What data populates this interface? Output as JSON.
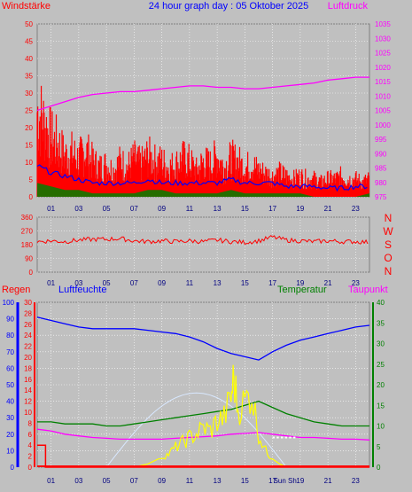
{
  "title": "24 hour graph day : 05 Oktober 2025",
  "hour_ticks": [
    "01",
    "03",
    "05",
    "07",
    "09",
    "11",
    "13",
    "15",
    "17",
    "19",
    "21",
    "23"
  ],
  "colors": {
    "background": "#c0c0c0",
    "plot_bg": "#c0c0c0",
    "grid": "#ffffff",
    "wind": "#ff0000",
    "wind_avg": "#0000ff",
    "wind_min": "#008000",
    "pressure": "#ff00ff",
    "direction": "#ff0000",
    "humidity": "#0000ff",
    "temperature": "#008000",
    "dewpoint": "#ff00ff",
    "rain": "#ff0000",
    "solar": "#ffff00",
    "sun": "#ffffff"
  },
  "chart_data": [
    {
      "type": "line",
      "name": "wind-pressure",
      "labels": {
        "left": "Windstärke",
        "right": "Luftdruck"
      },
      "y_left_ticks": [
        "50",
        "45",
        "40",
        "35",
        "30",
        "25",
        "20",
        "15",
        "10",
        "5",
        "0"
      ],
      "y_right_ticks": [
        "1035",
        "1030",
        "1025",
        "1020",
        "1015",
        "1010",
        "1005",
        "1000",
        "995",
        "990",
        "985",
        "980",
        "975"
      ],
      "ylim_left": [
        0,
        50
      ],
      "ylim_right": [
        975,
        1035
      ],
      "x_hours": [
        0,
        24
      ],
      "grid": true,
      "series": [
        {
          "key": "gust",
          "x": [
            0,
            0.5,
            1,
            1.5,
            2,
            2.5,
            3,
            3.5,
            4,
            4.5,
            5,
            5.5,
            6,
            6.5,
            7,
            7.5,
            8,
            8.5,
            9,
            9.5,
            10,
            10.5,
            11,
            11.5,
            12,
            12.5,
            13,
            13.5,
            14,
            14.5,
            15,
            15.5,
            16,
            16.5,
            17,
            17.5,
            18,
            18.5,
            19,
            19.5,
            20,
            20.5,
            21,
            21.5,
            22,
            22.5,
            23,
            23.5,
            24
          ],
          "y": [
            30,
            25,
            20,
            18,
            14,
            15,
            13,
            16,
            12,
            10,
            11,
            9,
            12,
            10,
            13,
            11,
            14,
            12,
            12,
            10,
            11,
            13,
            12,
            9,
            12,
            11,
            14,
            10,
            13,
            12,
            10,
            11,
            9,
            8,
            7,
            8,
            7,
            6,
            7,
            6,
            6,
            5,
            6,
            6,
            7,
            6,
            6,
            5,
            6
          ]
        },
        {
          "key": "avg",
          "x": [
            0,
            1,
            2,
            3,
            4,
            5,
            6,
            7,
            8,
            9,
            10,
            11,
            12,
            13,
            14,
            15,
            16,
            17,
            18,
            19,
            20,
            21,
            22,
            23,
            24
          ],
          "y": [
            9,
            7,
            6,
            5,
            4,
            4,
            4,
            4,
            5,
            4,
            4,
            4,
            4,
            4,
            5,
            4,
            4,
            4,
            3,
            3,
            3,
            2.5,
            2.5,
            3,
            3
          ]
        },
        {
          "key": "min",
          "x": [
            0,
            1,
            2,
            3,
            4,
            5,
            6,
            7,
            8,
            9,
            10,
            11,
            12,
            13,
            14,
            15,
            16,
            17,
            18,
            19,
            20,
            21,
            22,
            23,
            24
          ],
          "y": [
            4,
            3,
            2,
            2,
            1,
            1,
            1,
            1,
            2,
            2,
            1,
            1,
            1,
            1,
            2,
            1,
            1,
            1,
            1,
            1,
            0,
            0,
            0,
            0,
            1
          ]
        },
        {
          "key": "pressure",
          "axis": "right",
          "x": [
            0,
            1,
            2,
            3,
            4,
            5,
            6,
            7,
            8,
            9,
            10,
            11,
            12,
            13,
            14,
            15,
            16,
            17,
            18,
            19,
            20,
            21,
            22,
            23,
            24
          ],
          "y": [
            1005,
            1006.5,
            1008,
            1009.5,
            1010.5,
            1011,
            1011.5,
            1011.5,
            1012,
            1012.5,
            1013,
            1013.5,
            1013.5,
            1013,
            1013,
            1012.5,
            1012.5,
            1013,
            1013.5,
            1014,
            1014.5,
            1015.5,
            1016,
            1016.5,
            1016.5
          ]
        }
      ]
    },
    {
      "type": "line",
      "name": "wind-direction",
      "y_ticks": [
        "360",
        "270",
        "180",
        "90",
        "0"
      ],
      "ylim": [
        0,
        360
      ],
      "compass": [
        "N",
        "W",
        "S",
        "O",
        "N"
      ],
      "series": [
        {
          "key": "direction",
          "x": [
            0,
            1,
            2,
            3,
            4,
            5,
            6,
            7,
            8,
            9,
            10,
            11,
            12,
            13,
            14,
            15,
            16,
            17,
            18,
            19,
            20,
            21,
            22,
            23,
            24
          ],
          "y": [
            200,
            205,
            200,
            210,
            215,
            215,
            220,
            205,
            200,
            205,
            200,
            205,
            200,
            210,
            200,
            195,
            205,
            230,
            210,
            205,
            200,
            205,
            200,
            200,
            195
          ]
        }
      ]
    },
    {
      "type": "line",
      "name": "climate",
      "labels": {
        "rain": "Regen",
        "humidity": "Luftfeuchte",
        "temperature": "Temperatur",
        "dewpoint": "Taupunkt",
        "sun": "Sun Sh"
      },
      "humidity_ticks": [
        "100",
        "90",
        "80",
        "70",
        "60",
        "50",
        "40",
        "30",
        "20",
        "10",
        "0"
      ],
      "rain_ticks": [
        "30",
        "28",
        "26",
        "24",
        "22",
        "20",
        "18",
        "16",
        "14",
        "12",
        "10",
        "8",
        "6",
        "4",
        "2",
        "0"
      ],
      "temp_ticks": [
        "40",
        "35",
        "30",
        "25",
        "20",
        "15",
        "10",
        "5",
        "0"
      ],
      "ylim_humidity": [
        0,
        100
      ],
      "ylim_temp": [
        0,
        40
      ],
      "series": [
        {
          "key": "humidity",
          "x": [
            0,
            1,
            2,
            3,
            4,
            5,
            6,
            7,
            8,
            9,
            10,
            11,
            12,
            13,
            14,
            15,
            16,
            17,
            18,
            19,
            20,
            21,
            22,
            23,
            24
          ],
          "y": [
            91,
            89,
            87,
            85,
            84,
            84,
            84,
            84,
            83,
            82,
            81,
            79,
            76,
            72,
            69,
            67,
            65,
            70,
            74,
            77,
            79,
            81,
            83,
            85,
            86
          ]
        },
        {
          "key": "temperature",
          "x": [
            0,
            1,
            2,
            3,
            4,
            5,
            6,
            7,
            8,
            9,
            10,
            11,
            12,
            13,
            14,
            15,
            16,
            17,
            18,
            19,
            20,
            21,
            22,
            23,
            24
          ],
          "y": [
            11,
            11,
            10.5,
            10.5,
            10.5,
            10,
            10,
            10.5,
            11,
            11.5,
            12,
            12.5,
            13,
            13.5,
            14,
            15,
            16,
            14.5,
            13,
            12,
            11,
            10.5,
            10,
            10,
            10
          ]
        },
        {
          "key": "dewpoint",
          "axis": "humidity",
          "x": [
            0,
            1,
            2,
            3,
            4,
            5,
            6,
            7,
            8,
            9,
            10,
            11,
            12,
            13,
            14,
            15,
            16,
            17,
            18,
            19,
            20,
            21,
            22,
            23,
            24
          ],
          "y": [
            23,
            22,
            20,
            19,
            18,
            17.5,
            17,
            17,
            17,
            17,
            17.5,
            18,
            18.5,
            19,
            20,
            20.5,
            21,
            20,
            19,
            18,
            18,
            17.5,
            17,
            17,
            16.5
          ]
        },
        {
          "key": "solar",
          "axis": "humidity",
          "x": [
            7,
            8,
            9,
            9.5,
            10,
            10.5,
            11,
            11.5,
            12,
            12.5,
            13,
            13.5,
            14,
            14.2,
            14.5,
            15,
            15.5,
            16,
            16.5,
            17,
            17.5,
            18
          ],
          "y": [
            0,
            2,
            6,
            8,
            12,
            15,
            18,
            20,
            24,
            22,
            28,
            30,
            42,
            55,
            35,
            40,
            45,
            20,
            10,
            5,
            2,
            0
          ]
        },
        {
          "key": "rain",
          "axis": "rain",
          "x": [
            0,
            0.1,
            0.6,
            0.6,
            24
          ],
          "y": [
            4,
            4,
            4,
            0,
            0
          ]
        }
      ]
    }
  ]
}
